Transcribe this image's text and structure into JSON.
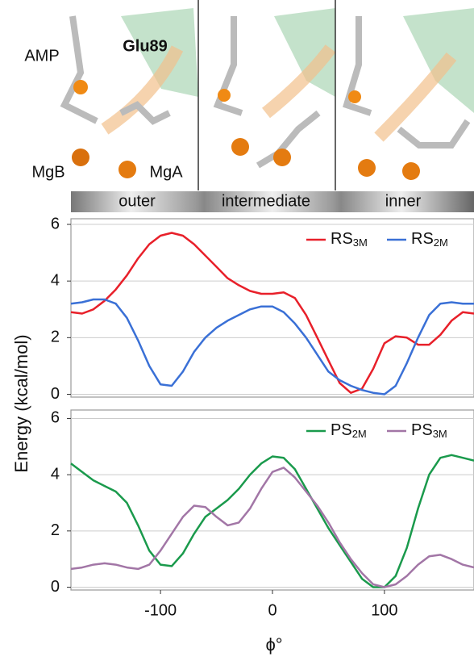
{
  "structure": {
    "labels": [
      "AMP",
      "Glu89",
      "MgB",
      "MgA"
    ],
    "states": [
      "outer",
      "intermediate",
      "inner"
    ]
  },
  "chart_data": [
    {
      "type": "line",
      "ylabel": "Energy (kcal/mol)",
      "x": [
        -180,
        -170,
        -160,
        -150,
        -140,
        -130,
        -120,
        -110,
        -100,
        -90,
        -80,
        -70,
        -60,
        -50,
        -40,
        -30,
        -20,
        -10,
        0,
        10,
        20,
        30,
        40,
        50,
        60,
        70,
        80,
        90,
        100,
        110,
        120,
        130,
        140,
        150,
        160,
        170,
        180
      ],
      "series": [
        {
          "name": "RS",
          "subscript": "3M",
          "color": "#e8202a",
          "values": [
            2.9,
            2.85,
            3.0,
            3.3,
            3.7,
            4.2,
            4.8,
            5.3,
            5.6,
            5.7,
            5.6,
            5.3,
            4.9,
            4.5,
            4.1,
            3.85,
            3.65,
            3.55,
            3.55,
            3.6,
            3.4,
            2.8,
            2.0,
            1.2,
            0.4,
            0.05,
            0.2,
            0.9,
            1.8,
            2.05,
            2.0,
            1.75,
            1.75,
            2.1,
            2.6,
            2.9,
            2.85
          ]
        },
        {
          "name": "RS",
          "subscript": "2M",
          "color": "#3a70d6",
          "values": [
            3.2,
            3.25,
            3.35,
            3.35,
            3.2,
            2.7,
            1.9,
            1.0,
            0.35,
            0.3,
            0.8,
            1.5,
            2.0,
            2.35,
            2.6,
            2.8,
            3.0,
            3.1,
            3.1,
            2.9,
            2.5,
            2.0,
            1.4,
            0.8,
            0.5,
            0.3,
            0.15,
            0.05,
            0.0,
            0.3,
            1.1,
            2.0,
            2.8,
            3.2,
            3.25,
            3.2,
            3.2
          ]
        }
      ],
      "xlim": [
        -180,
        180
      ],
      "ylim": [
        -0.1,
        6.2
      ],
      "yticks": [
        0,
        2,
        4,
        6
      ],
      "grid": true,
      "legend": "upper-right"
    },
    {
      "type": "line",
      "xlabel": "ϕ°",
      "x": [
        -180,
        -170,
        -160,
        -150,
        -140,
        -130,
        -120,
        -110,
        -100,
        -90,
        -80,
        -70,
        -60,
        -50,
        -40,
        -30,
        -20,
        -10,
        0,
        10,
        20,
        30,
        40,
        50,
        60,
        70,
        80,
        90,
        100,
        110,
        120,
        130,
        140,
        150,
        160,
        170,
        180
      ],
      "series": [
        {
          "name": "PS",
          "subscript": "2M",
          "color": "#1a9a4c",
          "values": [
            4.4,
            4.1,
            3.8,
            3.6,
            3.4,
            3.0,
            2.2,
            1.3,
            0.8,
            0.75,
            1.2,
            1.9,
            2.5,
            2.8,
            3.1,
            3.5,
            4.0,
            4.4,
            4.65,
            4.6,
            4.2,
            3.5,
            2.8,
            2.1,
            1.5,
            0.9,
            0.3,
            0.0,
            0.0,
            0.4,
            1.4,
            2.8,
            4.0,
            4.6,
            4.7,
            4.6,
            4.5
          ]
        },
        {
          "name": "PS",
          "subscript": "3M",
          "color": "#a276a6",
          "values": [
            0.65,
            0.7,
            0.8,
            0.85,
            0.8,
            0.7,
            0.65,
            0.8,
            1.3,
            1.9,
            2.5,
            2.9,
            2.85,
            2.5,
            2.2,
            2.3,
            2.8,
            3.5,
            4.1,
            4.25,
            3.9,
            3.4,
            2.9,
            2.3,
            1.6,
            1.0,
            0.5,
            0.1,
            0.0,
            0.1,
            0.4,
            0.8,
            1.1,
            1.15,
            1.0,
            0.8,
            0.7
          ]
        }
      ],
      "xlim": [
        -180,
        180
      ],
      "ylim": [
        -0.1,
        6.3
      ],
      "xticks": [
        -100,
        0,
        100
      ],
      "yticks": [
        0,
        2,
        4,
        6
      ],
      "grid": true,
      "legend": "upper-right"
    }
  ]
}
